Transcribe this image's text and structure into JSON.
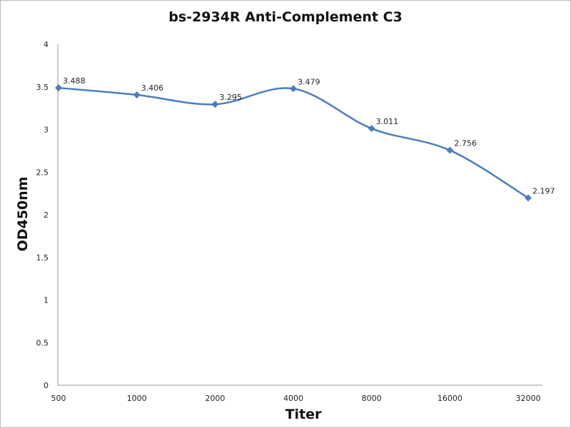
{
  "chart_data": {
    "type": "line",
    "title": "bs-2934R Anti-Complement C3",
    "xlabel": "Titer",
    "ylabel": "OD450nm",
    "categories": [
      "500",
      "1000",
      "2000",
      "4000",
      "8000",
      "16000",
      "32000"
    ],
    "series": [
      {
        "name": "OD450nm",
        "values": [
          3.488,
          3.406,
          3.295,
          3.479,
          3.011,
          2.756,
          2.197
        ],
        "color": "#4a7ebb"
      }
    ],
    "data_labels": [
      "3.488",
      "3.406",
      "3.295",
      "3.479",
      "3.011",
      "2.756",
      "2.197"
    ],
    "ylim": [
      0,
      4
    ],
    "yticks": [
      "0",
      "0.5",
      "1",
      "1.5",
      "2",
      "2.5",
      "3",
      "3.5",
      "4"
    ],
    "grid": false,
    "legend": "none"
  }
}
